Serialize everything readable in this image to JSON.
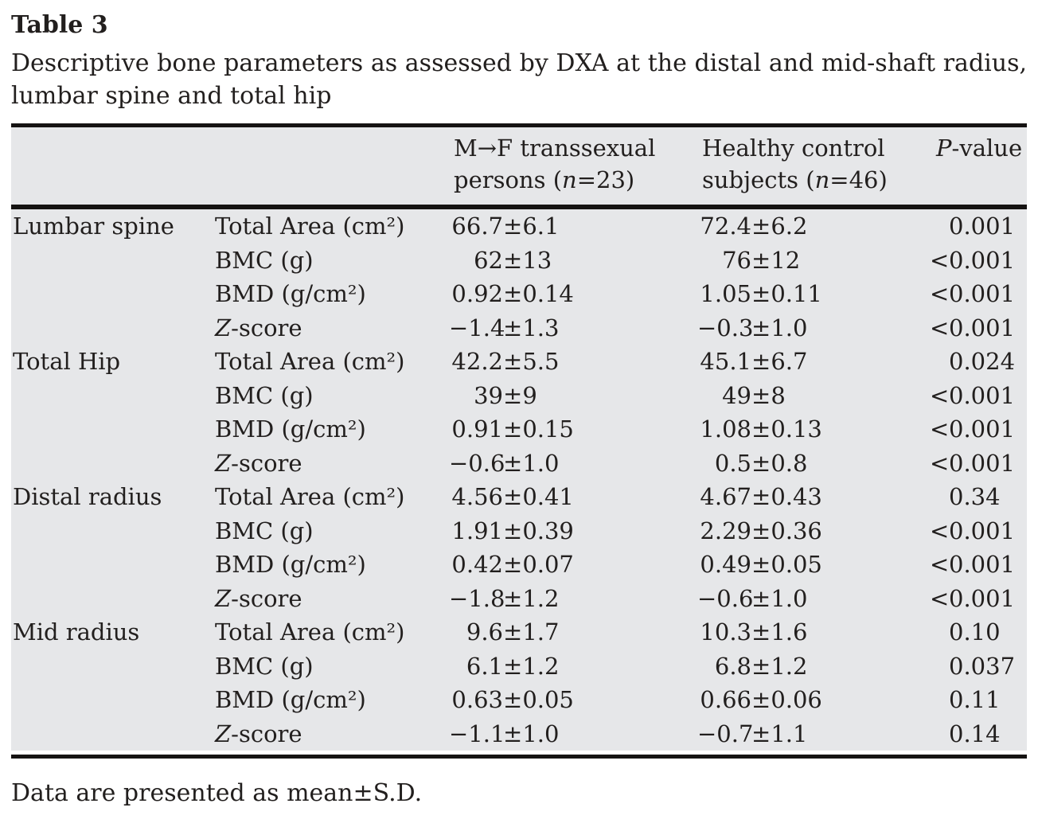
{
  "title": "Table 3",
  "caption": "Descriptive bone parameters as assessed by DXA at the distal and mid-shaft radius, lumbar spine and total hip",
  "symbols": {
    "plus_minus": "±"
  },
  "colors": {
    "table_background": "#e6e7e9",
    "rule": "#151312",
    "text": "#221f1e",
    "page_background": "#ffffff"
  },
  "columns": {
    "group1": {
      "line1": "M→F transsexual",
      "line2": [
        {
          "t": "persons ("
        },
        {
          "t": "n",
          "i": true
        },
        {
          "t": "=23)"
        }
      ]
    },
    "group2": {
      "line1": "Healthy control",
      "line2": [
        {
          "t": "subjects ("
        },
        {
          "t": "n",
          "i": true
        },
        {
          "t": "=46)"
        }
      ]
    },
    "p_value": [
      {
        "t": "P",
        "i": true
      },
      {
        "t": "-value"
      }
    ]
  },
  "groups": [
    {
      "region": "Lumbar spine",
      "rows": [
        {
          "param": [
            {
              "t": "Total Area (cm²)"
            }
          ],
          "g1": {
            "mean": "66.7",
            "sd": "6.1"
          },
          "g2": {
            "mean": "72.4",
            "sd": "6.2"
          },
          "p": {
            "prefix": "",
            "value": "0.001"
          }
        },
        {
          "param": [
            {
              "t": "BMC (g)"
            }
          ],
          "g1": {
            "mean": "62",
            "sd": "13"
          },
          "g2": {
            "mean": "76",
            "sd": "12"
          },
          "p": {
            "prefix": "<",
            "value": "0.001"
          }
        },
        {
          "param": [
            {
              "t": "BMD (g/cm²)"
            }
          ],
          "g1": {
            "mean": "0.92",
            "sd": "0.14"
          },
          "g2": {
            "mean": "1.05",
            "sd": "0.11"
          },
          "p": {
            "prefix": "<",
            "value": "0.001"
          }
        },
        {
          "param": [
            {
              "t": "Z",
              "i": true
            },
            {
              "t": "-score"
            }
          ],
          "g1": {
            "mean": "−1.4",
            "sd": "1.3"
          },
          "g2": {
            "mean": "−0.3",
            "sd": "1.0"
          },
          "p": {
            "prefix": "<",
            "value": "0.001"
          }
        }
      ]
    },
    {
      "region": "Total Hip",
      "rows": [
        {
          "param": [
            {
              "t": "Total Area (cm²)"
            }
          ],
          "g1": {
            "mean": "42.2",
            "sd": "5.5"
          },
          "g2": {
            "mean": "45.1",
            "sd": "6.7"
          },
          "p": {
            "prefix": "",
            "value": "0.024"
          }
        },
        {
          "param": [
            {
              "t": "BMC (g)"
            }
          ],
          "g1": {
            "mean": "39",
            "sd": "9"
          },
          "g2": {
            "mean": "49",
            "sd": "8"
          },
          "p": {
            "prefix": "<",
            "value": "0.001"
          }
        },
        {
          "param": [
            {
              "t": "BMD (g/cm²)"
            }
          ],
          "g1": {
            "mean": "0.91",
            "sd": "0.15"
          },
          "g2": {
            "mean": "1.08",
            "sd": "0.13"
          },
          "p": {
            "prefix": "<",
            "value": "0.001"
          }
        },
        {
          "param": [
            {
              "t": "Z",
              "i": true
            },
            {
              "t": "-score"
            }
          ],
          "g1": {
            "mean": "−0.6",
            "sd": "1.0"
          },
          "g2": {
            "mean": "0.5",
            "sd": "0.8"
          },
          "p": {
            "prefix": "<",
            "value": "0.001"
          }
        }
      ]
    },
    {
      "region": "Distal radius",
      "rows": [
        {
          "param": [
            {
              "t": "Total Area (cm²)"
            }
          ],
          "g1": {
            "mean": "4.56",
            "sd": "0.41"
          },
          "g2": {
            "mean": "4.67",
            "sd": "0.43"
          },
          "p": {
            "prefix": "",
            "value": "0.34"
          }
        },
        {
          "param": [
            {
              "t": "BMC (g)"
            }
          ],
          "g1": {
            "mean": "1.91",
            "sd": "0.39"
          },
          "g2": {
            "mean": "2.29",
            "sd": "0.36"
          },
          "p": {
            "prefix": "<",
            "value": "0.001"
          }
        },
        {
          "param": [
            {
              "t": "BMD (g/cm²)"
            }
          ],
          "g1": {
            "mean": "0.42",
            "sd": "0.07"
          },
          "g2": {
            "mean": "0.49",
            "sd": "0.05"
          },
          "p": {
            "prefix": "<",
            "value": "0.001"
          }
        },
        {
          "param": [
            {
              "t": "Z",
              "i": true
            },
            {
              "t": "-score"
            }
          ],
          "g1": {
            "mean": "−1.8",
            "sd": "1.2"
          },
          "g2": {
            "mean": "−0.6",
            "sd": "1.0"
          },
          "p": {
            "prefix": "<",
            "value": "0.001"
          }
        }
      ]
    },
    {
      "region": "Mid radius",
      "rows": [
        {
          "param": [
            {
              "t": "Total Area (cm²)"
            }
          ],
          "g1": {
            "mean": "9.6",
            "sd": "1.7"
          },
          "g2": {
            "mean": "10.3",
            "sd": "1.6"
          },
          "p": {
            "prefix": "",
            "value": "0.10"
          }
        },
        {
          "param": [
            {
              "t": "BMC (g)"
            }
          ],
          "g1": {
            "mean": "6.1",
            "sd": "1.2"
          },
          "g2": {
            "mean": "6.8",
            "sd": "1.2"
          },
          "p": {
            "prefix": "",
            "value": "0.037"
          }
        },
        {
          "param": [
            {
              "t": "BMD (g/cm²)"
            }
          ],
          "g1": {
            "mean": "0.63",
            "sd": "0.05"
          },
          "g2": {
            "mean": "0.66",
            "sd": "0.06"
          },
          "p": {
            "prefix": "",
            "value": "0.11"
          }
        },
        {
          "param": [
            {
              "t": "Z",
              "i": true
            },
            {
              "t": "-score"
            }
          ],
          "g1": {
            "mean": "−1.1",
            "sd": "1.0"
          },
          "g2": {
            "mean": "−0.7",
            "sd": "1.1"
          },
          "p": {
            "prefix": "",
            "value": "0.14"
          }
        }
      ]
    }
  ],
  "footnote": "Data are presented as mean±S.D."
}
